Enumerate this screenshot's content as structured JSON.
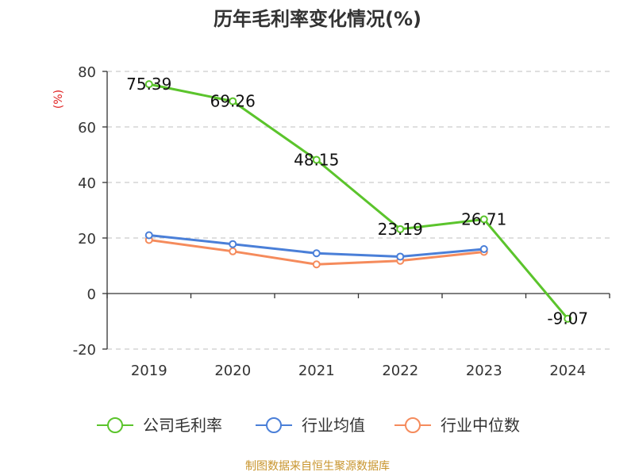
{
  "chart_data": {
    "type": "line",
    "title": "历年毛利率变化情况(%)",
    "ylabel": "(%)",
    "xlabel": "",
    "categories": [
      "2019",
      "2020",
      "2021",
      "2022",
      "2023",
      "2024"
    ],
    "ylim": [
      -20,
      80
    ],
    "yticks": [
      80,
      60,
      40,
      20,
      0,
      -20
    ],
    "grid": true,
    "legend_position": "bottom",
    "series": [
      {
        "name": "公司毛利率",
        "color": "#5bc42c",
        "values": [
          75.39,
          69.26,
          48.15,
          23.19,
          26.71,
          -9.07
        ],
        "labels": [
          "75.39",
          "69.26",
          "48.15",
          "23.19",
          "26.71",
          "-9.07"
        ]
      },
      {
        "name": "行业均值",
        "color": "#4a7fd8",
        "values": [
          21.0,
          17.8,
          14.5,
          13.3,
          16.0,
          null
        ]
      },
      {
        "name": "行业中位数",
        "color": "#f58b5c",
        "values": [
          19.3,
          15.2,
          10.5,
          11.8,
          15.0,
          null
        ]
      }
    ],
    "source": "制图数据来自恒生聚源数据库",
    "colors": {
      "axis": "#333333",
      "grid": "#cccccc",
      "ylabel": "#e02020",
      "source": "#c8952e"
    }
  }
}
